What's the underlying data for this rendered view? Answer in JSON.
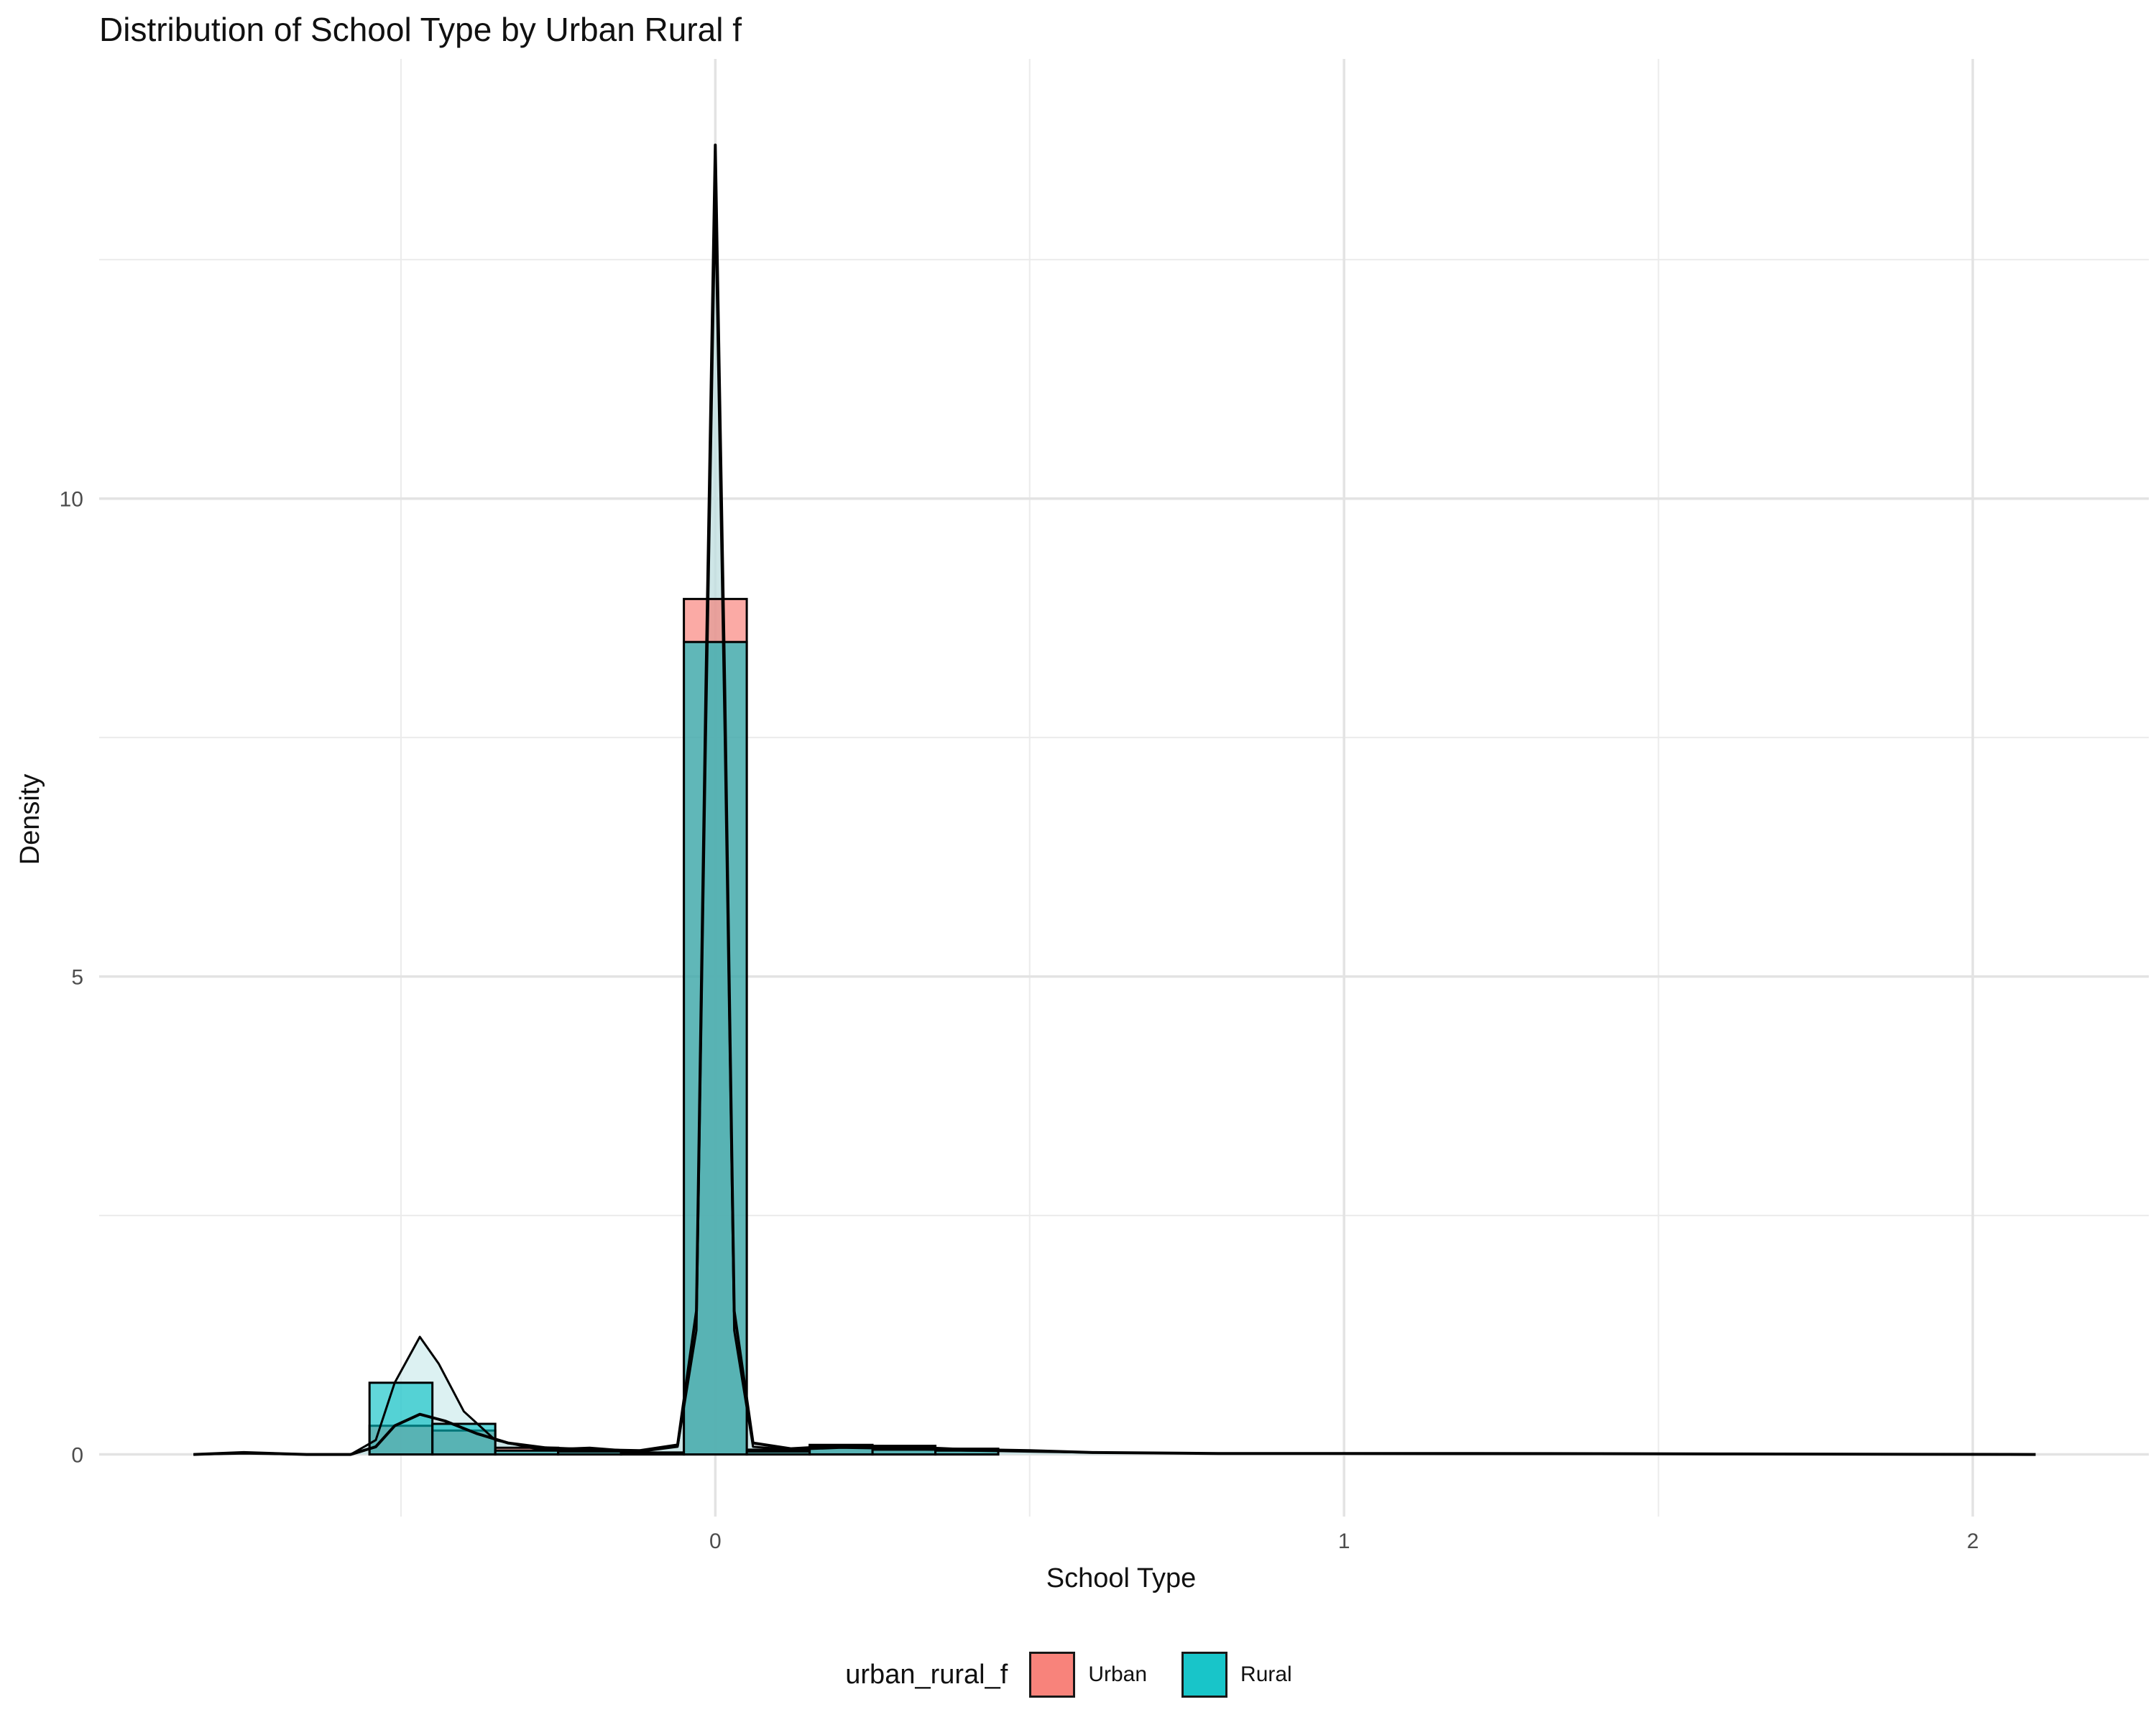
{
  "chart_data": {
    "type": "histogram-density",
    "title": "Distribution of School Type by Urban Rural f",
    "xlabel": "School Type",
    "ylabel": "Density",
    "xlim": [
      -0.98,
      2.28
    ],
    "ylim": [
      -0.65,
      14.6
    ],
    "x_ticks": [
      0,
      1,
      2
    ],
    "y_ticks": [
      0,
      5,
      10
    ],
    "grid": true,
    "legend": {
      "title": "urban_rural_f",
      "position": "bottom"
    },
    "series": [
      {
        "name": "Urban",
        "color": "#F8766D",
        "bins": [
          {
            "x0": -0.55,
            "x1": -0.45,
            "value": 0.3
          },
          {
            "x0": -0.45,
            "x1": -0.35,
            "value": 0.25
          },
          {
            "x0": -0.35,
            "x1": -0.25,
            "value": 0.07
          },
          {
            "x0": -0.25,
            "x1": -0.15,
            "value": 0.04
          },
          {
            "x0": -0.15,
            "x1": -0.05,
            "value": 0.02
          },
          {
            "x0": -0.05,
            "x1": 0.05,
            "value": 8.95
          },
          {
            "x0": 0.05,
            "x1": 0.15,
            "value": 0.05
          },
          {
            "x0": 0.15,
            "x1": 0.25,
            "value": 0.1
          },
          {
            "x0": 0.25,
            "x1": 0.35,
            "value": 0.09
          },
          {
            "x0": 0.35,
            "x1": 0.45,
            "value": 0.06
          }
        ],
        "density": [
          [
            -0.83,
            0.0
          ],
          [
            -0.75,
            0.02
          ],
          [
            -0.65,
            0.0
          ],
          [
            -0.58,
            0.0
          ],
          [
            -0.54,
            0.08
          ],
          [
            -0.51,
            0.3
          ],
          [
            -0.47,
            0.42
          ],
          [
            -0.43,
            0.35
          ],
          [
            -0.38,
            0.22
          ],
          [
            -0.33,
            0.12
          ],
          [
            -0.27,
            0.07
          ],
          [
            -0.2,
            0.05
          ],
          [
            -0.12,
            0.04
          ],
          [
            -0.06,
            0.1
          ],
          [
            -0.03,
            1.5
          ],
          [
            -0.015,
            8.0
          ],
          [
            0.0,
            13.7
          ],
          [
            0.015,
            8.0
          ],
          [
            0.03,
            1.5
          ],
          [
            0.06,
            0.12
          ],
          [
            0.12,
            0.06
          ],
          [
            0.2,
            0.09
          ],
          [
            0.3,
            0.08
          ],
          [
            0.4,
            0.05
          ],
          [
            0.5,
            0.04
          ],
          [
            0.6,
            0.02
          ],
          [
            0.8,
            0.01
          ],
          [
            1.2,
            0.01
          ],
          [
            1.6,
            0.005
          ],
          [
            2.1,
            0.0
          ]
        ]
      },
      {
        "name": "Rural",
        "color": "#00BFC4",
        "bins": [
          {
            "x0": -0.55,
            "x1": -0.45,
            "value": 0.75
          },
          {
            "x0": -0.45,
            "x1": -0.35,
            "value": 0.32
          },
          {
            "x0": -0.35,
            "x1": -0.25,
            "value": 0.04
          },
          {
            "x0": -0.25,
            "x1": -0.15,
            "value": 0.03
          },
          {
            "x0": -0.15,
            "x1": -0.05,
            "value": 0.02
          },
          {
            "x0": -0.05,
            "x1": 0.05,
            "value": 8.5
          },
          {
            "x0": 0.05,
            "x1": 0.15,
            "value": 0.03
          },
          {
            "x0": 0.15,
            "x1": 0.25,
            "value": 0.08
          },
          {
            "x0": 0.25,
            "x1": 0.35,
            "value": 0.05
          },
          {
            "x0": 0.35,
            "x1": 0.45,
            "value": 0.04
          }
        ],
        "density": [
          [
            -0.83,
            0.0
          ],
          [
            -0.75,
            0.01
          ],
          [
            -0.65,
            0.0
          ],
          [
            -0.58,
            0.0
          ],
          [
            -0.54,
            0.15
          ],
          [
            -0.51,
            0.75
          ],
          [
            -0.47,
            1.23
          ],
          [
            -0.44,
            0.95
          ],
          [
            -0.4,
            0.45
          ],
          [
            -0.35,
            0.15
          ],
          [
            -0.28,
            0.05
          ],
          [
            -0.2,
            0.07
          ],
          [
            -0.12,
            0.03
          ],
          [
            -0.06,
            0.08
          ],
          [
            -0.03,
            1.3
          ],
          [
            -0.015,
            7.5
          ],
          [
            0.0,
            13.1
          ],
          [
            0.015,
            7.5
          ],
          [
            0.03,
            1.3
          ],
          [
            0.06,
            0.08
          ],
          [
            0.12,
            0.05
          ],
          [
            0.2,
            0.07
          ],
          [
            0.3,
            0.06
          ],
          [
            0.4,
            0.04
          ],
          [
            0.5,
            0.03
          ],
          [
            0.6,
            0.02
          ],
          [
            0.8,
            0.01
          ],
          [
            1.2,
            0.005
          ],
          [
            1.6,
            0.005
          ],
          [
            2.1,
            0.0
          ]
        ]
      }
    ]
  }
}
